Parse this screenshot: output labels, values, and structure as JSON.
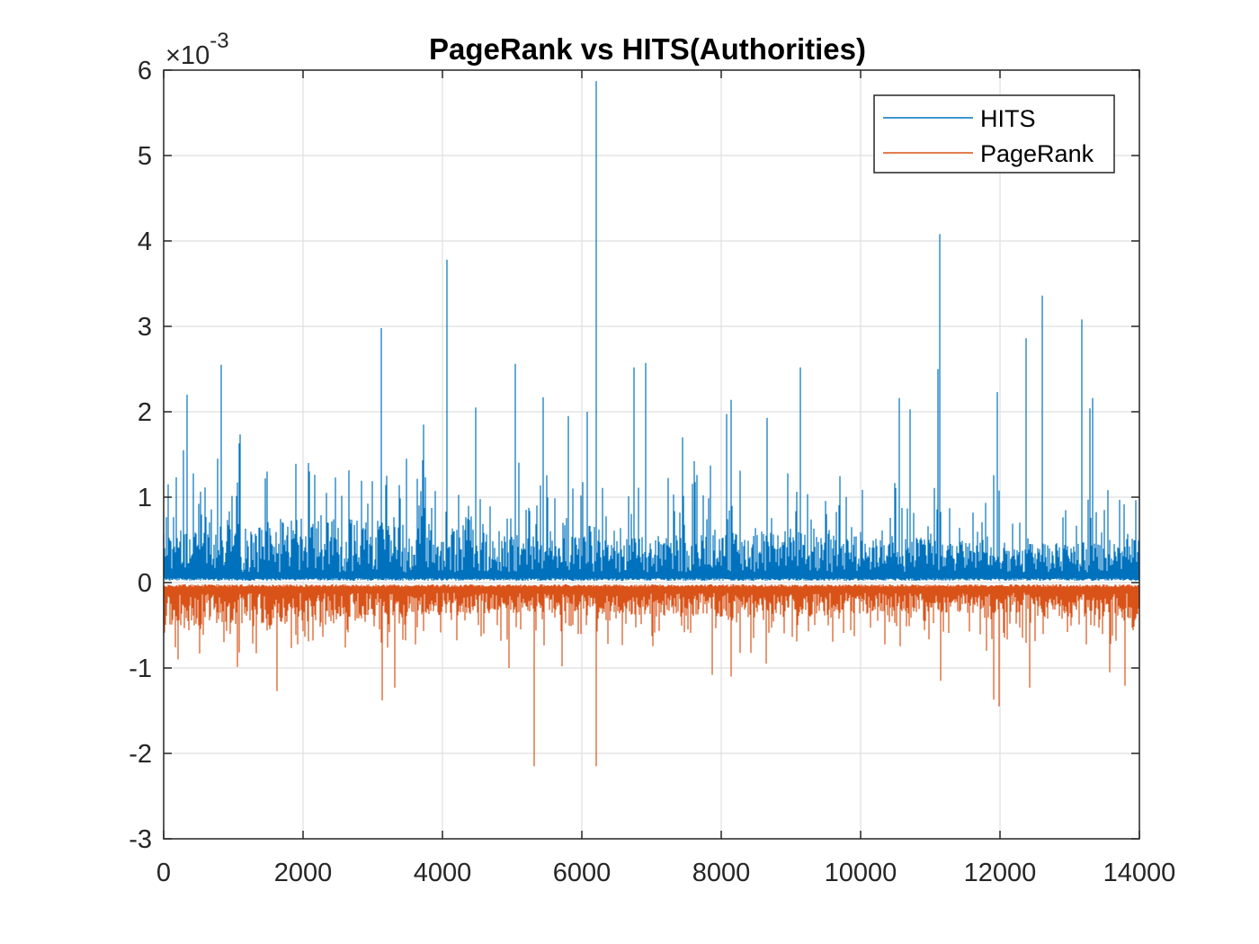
{
  "chart_data": {
    "type": "line",
    "title": "PageRank vs HITS(Authorities)",
    "xlabel": "",
    "ylabel": "",
    "xlim": [
      0,
      14000
    ],
    "ylim": [
      -3,
      6
    ],
    "y_exponent_label": "×10",
    "y_exponent_value": "-3",
    "grid": true,
    "legend_position": "top-right",
    "x_ticks": [
      0,
      2000,
      4000,
      6000,
      8000,
      10000,
      12000,
      14000
    ],
    "x_tick_labels": [
      "0",
      "2000",
      "4000",
      "6000",
      "8000",
      "10000",
      "12000",
      "14000"
    ],
    "y_ticks": [
      -3,
      -2,
      -1,
      0,
      1,
      2,
      3,
      4,
      5,
      6
    ],
    "y_tick_labels": [
      "-3",
      "-2",
      "-1",
      "0",
      "1",
      "2",
      "3",
      "4",
      "5",
      "6"
    ],
    "y_unit_scale": 0.001,
    "series": [
      {
        "name": "HITS",
        "color": "#0072BD",
        "direction": 1,
        "n_points": 13860,
        "peaks": [
          {
            "x": 330,
            "y": 2.2
          },
          {
            "x": 290,
            "y": 1.55
          },
          {
            "x": 820,
            "y": 2.55
          },
          {
            "x": 780,
            "y": 1.45
          },
          {
            "x": 1080,
            "y": 1.63
          },
          {
            "x": 1460,
            "y": 1.22
          },
          {
            "x": 2080,
            "y": 1.4
          },
          {
            "x": 2330,
            "y": 1.05
          },
          {
            "x": 3120,
            "y": 2.98
          },
          {
            "x": 3480,
            "y": 1.45
          },
          {
            "x": 3730,
            "y": 1.85
          },
          {
            "x": 4060,
            "y": 3.78
          },
          {
            "x": 4480,
            "y": 2.05
          },
          {
            "x": 5040,
            "y": 2.56
          },
          {
            "x": 5450,
            "y": 2.17
          },
          {
            "x": 5800,
            "y": 1.95
          },
          {
            "x": 6080,
            "y": 2.0
          },
          {
            "x": 6200,
            "y": 5.87
          },
          {
            "x": 6750,
            "y": 2.52
          },
          {
            "x": 6910,
            "y": 2.57
          },
          {
            "x": 7450,
            "y": 1.7
          },
          {
            "x": 8140,
            "y": 2.14
          },
          {
            "x": 8660,
            "y": 1.93
          },
          {
            "x": 9130,
            "y": 2.52
          },
          {
            "x": 10560,
            "y": 2.16
          },
          {
            "x": 10710,
            "y": 2.03
          },
          {
            "x": 11110,
            "y": 2.5
          },
          {
            "x": 11140,
            "y": 4.08
          },
          {
            "x": 11960,
            "y": 2.23
          },
          {
            "x": 12380,
            "y": 2.86
          },
          {
            "x": 12610,
            "y": 3.36
          },
          {
            "x": 13170,
            "y": 3.08
          },
          {
            "x": 13290,
            "y": 2.04
          },
          {
            "x": 13330,
            "y": 2.16
          }
        ]
      },
      {
        "name": "PageRank",
        "color": "#D95319",
        "direction": -1,
        "n_points": 13860,
        "peaks": [
          {
            "x": 200,
            "y": -0.9
          },
          {
            "x": 520,
            "y": -0.83
          },
          {
            "x": 1620,
            "y": -1.27
          },
          {
            "x": 3130,
            "y": -1.38
          },
          {
            "x": 3320,
            "y": -1.23
          },
          {
            "x": 4950,
            "y": -1.0
          },
          {
            "x": 5320,
            "y": -2.15
          },
          {
            "x": 5720,
            "y": -0.98
          },
          {
            "x": 6200,
            "y": -2.15
          },
          {
            "x": 7870,
            "y": -1.08
          },
          {
            "x": 8140,
            "y": -1.1
          },
          {
            "x": 8650,
            "y": -0.95
          },
          {
            "x": 11150,
            "y": -1.15
          },
          {
            "x": 11910,
            "y": -1.37
          },
          {
            "x": 11990,
            "y": -1.45
          },
          {
            "x": 12420,
            "y": -1.23
          },
          {
            "x": 13570,
            "y": -1.05
          }
        ]
      }
    ]
  }
}
